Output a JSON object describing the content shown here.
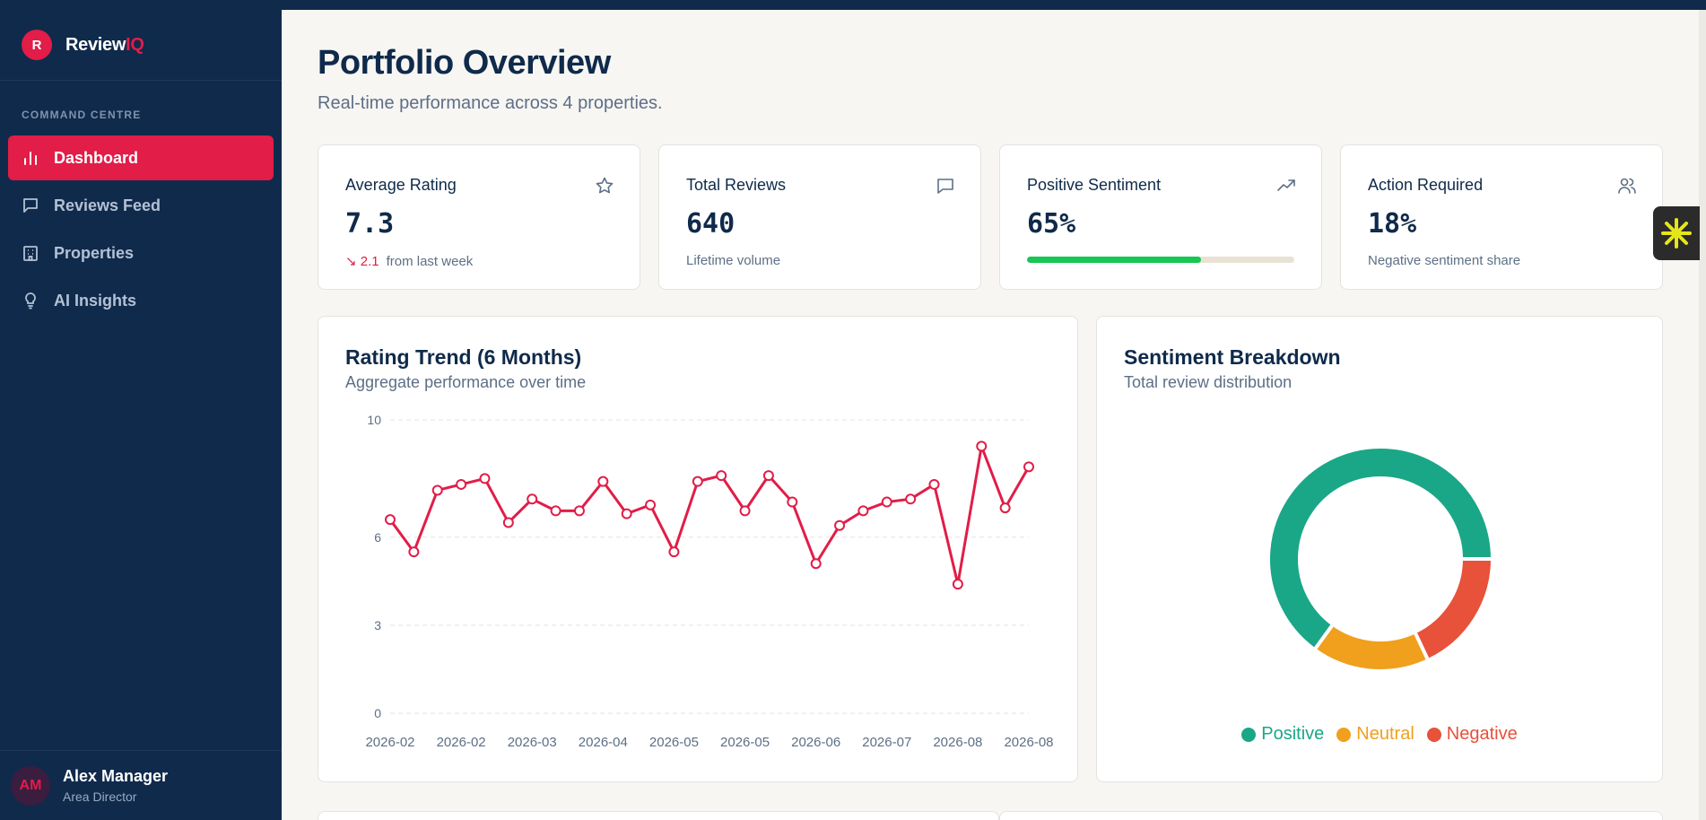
{
  "app": {
    "logo_letter": "R",
    "name_main": "Review",
    "name_accent": "IQ"
  },
  "sidebar": {
    "section_label": "COMMAND CENTRE",
    "items": [
      {
        "label": "Dashboard",
        "icon": "bar-chart-icon",
        "active": true
      },
      {
        "label": "Reviews Feed",
        "icon": "message-icon",
        "active": false
      },
      {
        "label": "Properties",
        "icon": "building-icon",
        "active": false
      },
      {
        "label": "AI Insights",
        "icon": "lightbulb-icon",
        "active": false
      }
    ],
    "user": {
      "initials": "AM",
      "name": "Alex Manager",
      "role": "Area Director"
    }
  },
  "page": {
    "title": "Portfolio Overview",
    "subtitle": "Real-time performance across 4 properties."
  },
  "stats": {
    "avg_rating": {
      "title": "Average Rating",
      "value": "7.3",
      "delta": "↘ 2.1",
      "delta_text": "from last week",
      "icon": "star-icon"
    },
    "total_reviews": {
      "title": "Total Reviews",
      "value": "640",
      "sub": "Lifetime volume",
      "icon": "message-icon"
    },
    "positive": {
      "title": "Positive Sentiment",
      "value": "65%",
      "progress": 0.65,
      "icon": "trending-up-icon"
    },
    "action": {
      "title": "Action Required",
      "value": "18%",
      "sub": "Negative sentiment share",
      "icon": "users-icon"
    }
  },
  "trend_panel": {
    "title": "Rating Trend (6 Months)",
    "subtitle": "Aggregate performance over time"
  },
  "sentiment_panel": {
    "title": "Sentiment Breakdown",
    "subtitle": "Total review distribution"
  },
  "chart_data": [
    {
      "type": "line",
      "yticks": [
        0,
        3,
        6,
        10
      ],
      "ylim": [
        0,
        10
      ],
      "xtick_labels": [
        "2026-02",
        "2026-02",
        "2026-03",
        "2026-04",
        "2026-05",
        "2026-05",
        "2026-06",
        "2026-07",
        "2026-08",
        "2026-08"
      ],
      "values": [
        6.6,
        5.5,
        7.6,
        7.8,
        8.0,
        6.5,
        7.3,
        6.9,
        6.9,
        7.9,
        6.8,
        7.1,
        5.5,
        7.9,
        8.1,
        6.9,
        8.1,
        7.2,
        5.1,
        6.4,
        6.9,
        7.2,
        7.3,
        7.8,
        4.4,
        9.1,
        7.0,
        8.4
      ],
      "color": "#e11d48",
      "grid": true
    },
    {
      "type": "pie",
      "categories": [
        "Positive",
        "Neutral",
        "Negative"
      ],
      "values": [
        65,
        17,
        18
      ],
      "colors": [
        "#1aa787",
        "#f0a01c",
        "#e8513a"
      ]
    }
  ]
}
